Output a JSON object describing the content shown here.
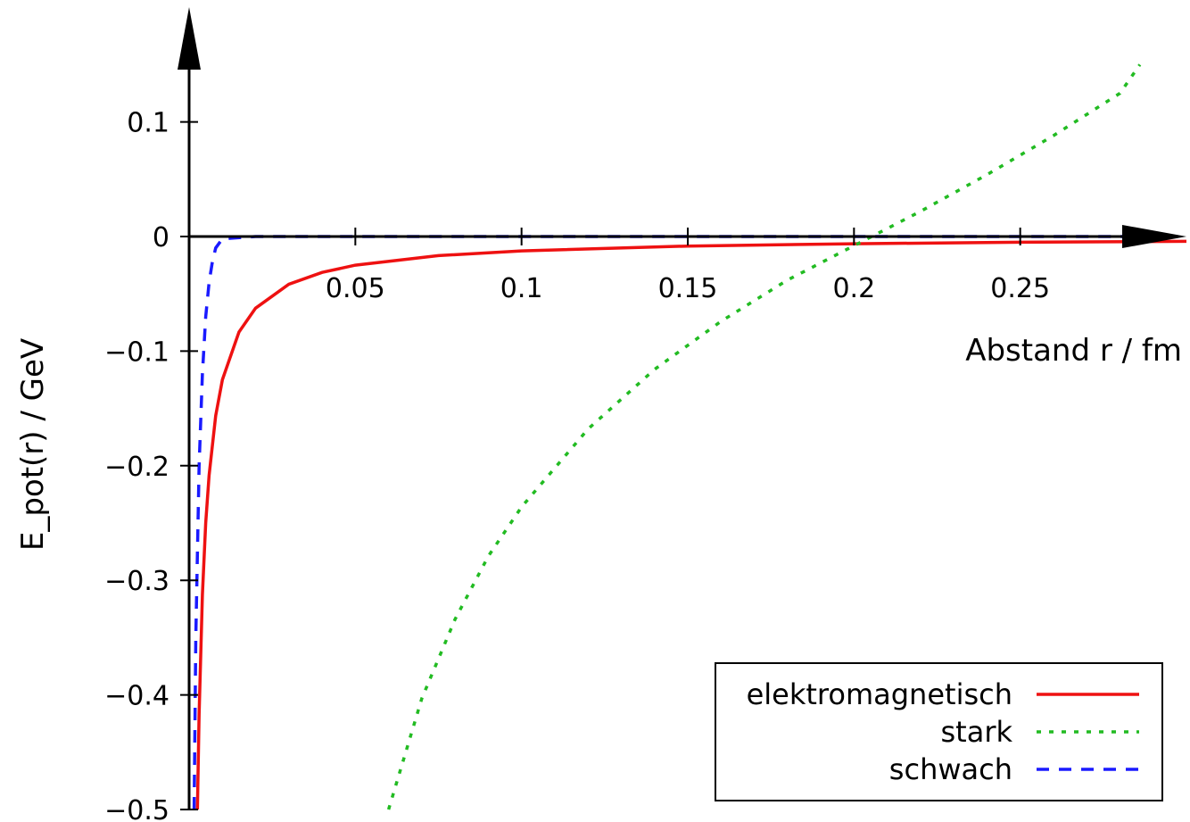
{
  "chart_data": {
    "type": "line",
    "xlabel": "Abstand r / fm",
    "ylabel": "E_pot(r) / GeV",
    "xlim": [
      0,
      0.3
    ],
    "ylim": [
      -0.5,
      0.15
    ],
    "x_ticks": [
      0.05,
      0.1,
      0.15,
      0.2,
      0.25
    ],
    "x_tick_labels": [
      "0.05",
      "0.1",
      "0.15",
      "0.2",
      "0.25"
    ],
    "y_ticks": [
      0.1,
      0,
      -0.1,
      -0.2,
      -0.3,
      -0.4,
      -0.5
    ],
    "y_tick_labels": [
      "0.1",
      "0",
      "−0.1",
      "−0.2",
      "−0.3",
      "−0.4",
      "−0.5"
    ],
    "grid": false,
    "legend": "bottom-right",
    "series": [
      {
        "name": "elektromagnetisch",
        "color": "#ee1111",
        "style": "solid",
        "x": [
          0.0025,
          0.003,
          0.004,
          0.005,
          0.006,
          0.008,
          0.01,
          0.015,
          0.02,
          0.03,
          0.04,
          0.05,
          0.075,
          0.1,
          0.15,
          0.2,
          0.25,
          0.3
        ],
        "y": [
          -0.5,
          -0.4167,
          -0.3125,
          -0.25,
          -0.2083,
          -0.1563,
          -0.125,
          -0.0833,
          -0.0625,
          -0.0417,
          -0.0313,
          -0.025,
          -0.0167,
          -0.0125,
          -0.0083,
          -0.0063,
          -0.005,
          -0.0042
        ]
      },
      {
        "name": "stark",
        "color": "#22bb22",
        "style": "dotted",
        "x": [
          0.06,
          0.07,
          0.08,
          0.09,
          0.1,
          0.12,
          0.14,
          0.16,
          0.18,
          0.2,
          0.22,
          0.24,
          0.26,
          0.28,
          0.286
        ],
        "y": [
          -0.5,
          -0.403,
          -0.334,
          -0.279,
          -0.236,
          -0.168,
          -0.116,
          -0.074,
          -0.038,
          -0.008,
          0.022,
          0.054,
          0.088,
          0.125,
          0.15
        ]
      },
      {
        "name": "schwach",
        "color": "#1a1aff",
        "style": "dashed",
        "x": [
          0.0015,
          0.002,
          0.003,
          0.004,
          0.005,
          0.006,
          0.007,
          0.008,
          0.01,
          0.02,
          0.3
        ],
        "y": [
          -0.5,
          -0.35,
          -0.2,
          -0.12,
          -0.07,
          -0.04,
          -0.022,
          -0.01,
          -0.002,
          0,
          0
        ]
      }
    ]
  }
}
